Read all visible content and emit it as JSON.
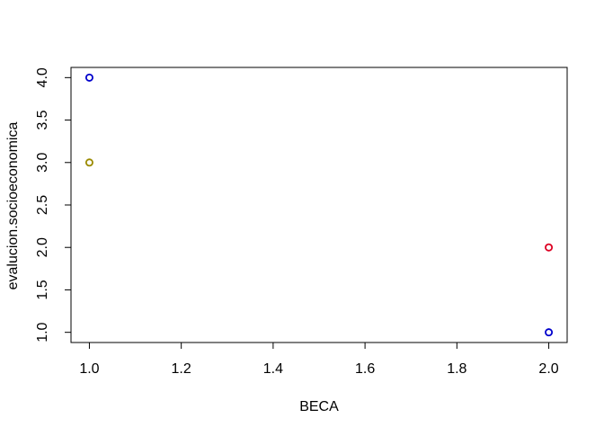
{
  "chart_data": {
    "type": "scatter",
    "title": "",
    "xlabel": "BECA",
    "ylabel": "evalucion.socioeconomica",
    "xlim": [
      0.96,
      2.04
    ],
    "ylim": [
      0.88,
      4.12
    ],
    "x_ticks": [
      1.0,
      1.2,
      1.4,
      1.6,
      1.8,
      2.0
    ],
    "x_tick_labels": [
      "1.0",
      "1.2",
      "1.4",
      "1.6",
      "1.8",
      "2.0"
    ],
    "y_ticks": [
      1.0,
      1.5,
      2.0,
      2.5,
      3.0,
      3.5,
      4.0
    ],
    "y_tick_labels": [
      "1.0",
      "1.5",
      "2.0",
      "2.5",
      "3.0",
      "3.5",
      "4.0"
    ],
    "grid": false,
    "legend": "none",
    "marker": "open-circle",
    "points": [
      {
        "x": 1.0,
        "y": 4.0,
        "color": "#0000cc"
      },
      {
        "x": 1.0,
        "y": 3.0,
        "color": "#9a8a00"
      },
      {
        "x": 2.0,
        "y": 2.0,
        "color": "#dd0022"
      },
      {
        "x": 2.0,
        "y": 1.0,
        "color": "#0000cc"
      }
    ]
  }
}
